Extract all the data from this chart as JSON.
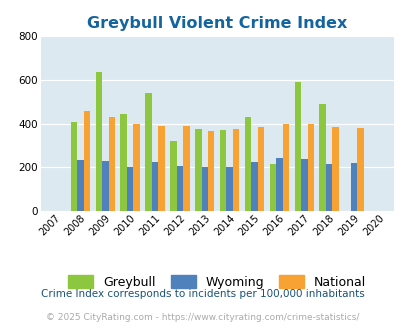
{
  "title": "Greybull Violent Crime Index",
  "years": [
    2007,
    2008,
    2009,
    2010,
    2011,
    2012,
    2013,
    2014,
    2015,
    2016,
    2017,
    2018,
    2019,
    2020
  ],
  "greybull": [
    null,
    410,
    635,
    445,
    540,
    320,
    375,
    370,
    430,
    215,
    590,
    490,
    null,
    null
  ],
  "wyoming": [
    null,
    235,
    230,
    200,
    225,
    205,
    200,
    200,
    225,
    245,
    240,
    215,
    220,
    null
  ],
  "national": [
    null,
    460,
    430,
    400,
    390,
    390,
    365,
    375,
    385,
    400,
    400,
    385,
    380,
    null
  ],
  "greybull_color": "#8dc63f",
  "wyoming_color": "#4f81bd",
  "national_color": "#f7a233",
  "plot_bg": "#dce9f0",
  "ylim": [
    0,
    800
  ],
  "yticks": [
    0,
    200,
    400,
    600,
    800
  ],
  "bar_width": 0.26,
  "footnote1": "Crime Index corresponds to incidents per 100,000 inhabitants",
  "footnote2": "© 2025 CityRating.com - https://www.cityrating.com/crime-statistics/",
  "title_color": "#1464a0",
  "footnote1_color": "#1a5276",
  "footnote2_color": "#aaaaaa"
}
